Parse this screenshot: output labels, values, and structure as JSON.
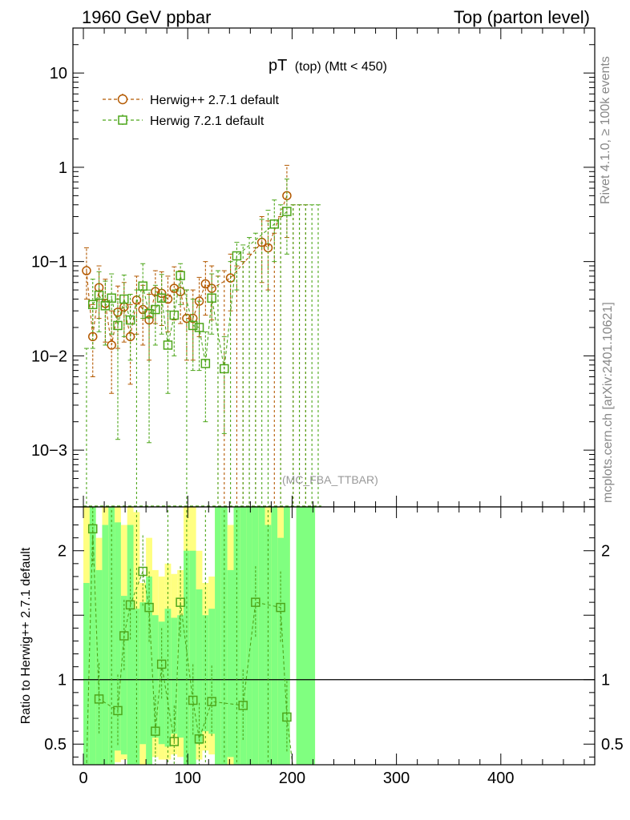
{
  "header": {
    "left": "1960 GeV ppbar",
    "right": "Top (parton level)"
  },
  "side": {
    "rivet": "Rivet 4.1.0, ≥ 100k events",
    "mcplots": "mcplots.cern.ch [arXiv:2401.10621]"
  },
  "colors": {
    "herwigpp": "#b35900",
    "herwig7": "#4da61a",
    "band_yellow": "#ffff80",
    "band_green": "#80ff80"
  },
  "chart_data": [
    {
      "type": "line",
      "panel": "main",
      "title": "pT",
      "title_sub": "(top) (Mtt < 450)",
      "watermark": "(MC_FBA_TTBAR)",
      "yscale": "log",
      "ylim": [
        0.00025,
        30
      ],
      "xlim": [
        -10,
        490
      ],
      "y_ticks": [
        {
          "value": 10,
          "label": "10"
        },
        {
          "value": 1,
          "label": "1"
        },
        {
          "value": 0.1,
          "label": "10−1"
        },
        {
          "value": 0.01,
          "label": "10−2"
        },
        {
          "value": 0.001,
          "label": "10−3"
        }
      ],
      "legend": [
        "Herwig++ 2.7.1 default",
        "Herwig 7.2.1 default"
      ],
      "legend_position": "top-left",
      "series": [
        {
          "name": "Herwig++ 2.7.1 default",
          "color": "#b35900",
          "marker": "circle",
          "points": [
            {
              "x": 3,
              "y": 0.08,
              "lo": 0.04,
              "hi": 0.14
            },
            {
              "x": 9,
              "y": 0.016,
              "lo": 0.006,
              "hi": 0.035
            },
            {
              "x": 15,
              "y": 0.053,
              "lo": 0.025,
              "hi": 0.09
            },
            {
              "x": 21,
              "y": 0.036,
              "lo": 0.014,
              "hi": 0.065
            },
            {
              "x": 27,
              "y": 0.013,
              "lo": 0.004,
              "hi": 0.03
            },
            {
              "x": 33,
              "y": 0.029,
              "lo": 0.012,
              "hi": 0.055
            },
            {
              "x": 39,
              "y": 0.033,
              "lo": 0.014,
              "hi": 0.06
            },
            {
              "x": 45,
              "y": 0.016,
              "lo": 0.005,
              "hi": 0.035
            },
            {
              "x": 51,
              "y": 0.039,
              "lo": 0.017,
              "hi": 0.07
            },
            {
              "x": 57,
              "y": 0.031,
              "lo": 0.013,
              "hi": 0.056
            },
            {
              "x": 63,
              "y": 0.024,
              "lo": 0.009,
              "hi": 0.045
            },
            {
              "x": 69,
              "y": 0.048,
              "lo": 0.022,
              "hi": 0.08
            },
            {
              "x": 75,
              "y": 0.046,
              "lo": 0.021,
              "hi": 0.078
            },
            {
              "x": 81,
              "y": 0.04,
              "lo": 0.018,
              "hi": 0.07
            },
            {
              "x": 87,
              "y": 0.052,
              "lo": 0.024,
              "hi": 0.088
            },
            {
              "x": 93,
              "y": 0.048,
              "lo": 0.022,
              "hi": 0.08
            },
            {
              "x": 99,
              "y": 0.025,
              "lo": 0.009,
              "hi": 0.05
            },
            {
              "x": 105,
              "y": 0.025,
              "lo": 0.009,
              "hi": 0.05
            },
            {
              "x": 111,
              "y": 0.038,
              "lo": 0.016,
              "hi": 0.068
            },
            {
              "x": 117,
              "y": 0.058,
              "lo": 0.027,
              "hi": 0.1
            },
            {
              "x": 123,
              "y": 0.052,
              "lo": 0.024,
              "hi": 0.09
            },
            {
              "x": 141,
              "y": 0.067,
              "lo": 0.03,
              "hi": 0.12
            },
            {
              "x": 171,
              "y": 0.16,
              "lo": 0.06,
              "hi": 0.3
            },
            {
              "x": 177,
              "y": 0.14,
              "lo": 0.05,
              "hi": 0.27
            },
            {
              "x": 195,
              "y": 0.5,
              "lo": 0.18,
              "hi": 1.05
            }
          ],
          "empty_bins_upper": [
            {
              "x": 129,
              "hi": 0.07
            },
            {
              "x": 135,
              "hi": 0.08
            },
            {
              "x": 147,
              "hi": 0.09
            },
            {
              "x": 153,
              "hi": 0.1
            },
            {
              "x": 159,
              "hi": 0.12
            },
            {
              "x": 165,
              "hi": 0.14
            },
            {
              "x": 183,
              "hi": 0.2
            },
            {
              "x": 189,
              "hi": 0.3
            },
            {
              "x": 201,
              "hi": 0.4
            },
            {
              "x": 207,
              "hi": 0.4
            },
            {
              "x": 213,
              "hi": 0.4
            }
          ]
        },
        {
          "name": "Herwig 7.2.1 default",
          "color": "#4da61a",
          "marker": "square",
          "points": [
            {
              "x": 9,
              "y": 0.035,
              "lo": 0.012,
              "hi": 0.065
            },
            {
              "x": 15,
              "y": 0.044,
              "lo": 0.018,
              "hi": 0.078
            },
            {
              "x": 21,
              "y": 0.034,
              "lo": 0.013,
              "hi": 0.062
            },
            {
              "x": 27,
              "y": 0.041,
              "lo": 0.017,
              "hi": 0.074
            },
            {
              "x": 33,
              "y": 0.021,
              "lo": 0.0013,
              "hi": 0.04
            },
            {
              "x": 39,
              "y": 0.04,
              "lo": 0.016,
              "hi": 0.072
            },
            {
              "x": 45,
              "y": 0.024,
              "lo": 0.009,
              "hi": 0.045
            },
            {
              "x": 57,
              "y": 0.055,
              "lo": 0.025,
              "hi": 0.095
            },
            {
              "x": 63,
              "y": 0.028,
              "lo": 0.0012,
              "hi": 0.05
            },
            {
              "x": 69,
              "y": 0.031,
              "lo": 0.013,
              "hi": 0.056
            },
            {
              "x": 75,
              "y": 0.041,
              "lo": 0.017,
              "hi": 0.073
            },
            {
              "x": 81,
              "y": 0.013,
              "lo": 0.004,
              "hi": 0.03
            },
            {
              "x": 87,
              "y": 0.027,
              "lo": 0.01,
              "hi": 0.05
            },
            {
              "x": 93,
              "y": 0.071,
              "lo": 0.035,
              "hi": 0.095
            },
            {
              "x": 105,
              "y": 0.021,
              "lo": 0.007,
              "hi": 0.04
            },
            {
              "x": 111,
              "y": 0.02,
              "lo": 0.007,
              "hi": 0.038
            },
            {
              "x": 117,
              "y": 0.0083,
              "lo": 0.002,
              "hi": 0.018
            },
            {
              "x": 123,
              "y": 0.041,
              "lo": 0.017,
              "hi": 0.074
            },
            {
              "x": 135,
              "y": 0.0073,
              "lo": 0.0015,
              "hi": 0.016
            },
            {
              "x": 147,
              "y": 0.115,
              "lo": 0.05,
              "hi": 0.16
            },
            {
              "x": 183,
              "y": 0.25,
              "lo": 0.1,
              "hi": 0.45
            },
            {
              "x": 195,
              "y": 0.34,
              "lo": 0.12,
              "hi": 0.75
            }
          ],
          "empty_bins_upper": [
            {
              "x": 3,
              "hi": 0.012
            },
            {
              "x": 51,
              "hi": 0.05
            },
            {
              "x": 99,
              "hi": 0.05
            },
            {
              "x": 129,
              "hi": 0.08
            },
            {
              "x": 141,
              "hi": 0.1
            },
            {
              "x": 153,
              "hi": 0.15
            },
            {
              "x": 159,
              "hi": 0.18
            },
            {
              "x": 165,
              "hi": 0.2
            },
            {
              "x": 171,
              "hi": 0.28
            },
            {
              "x": 177,
              "hi": 0.35
            },
            {
              "x": 189,
              "hi": 0.4
            },
            {
              "x": 201,
              "hi": 0.4
            },
            {
              "x": 207,
              "hi": 0.4
            },
            {
              "x": 213,
              "hi": 0.4
            },
            {
              "x": 219,
              "hi": 0.4
            },
            {
              "x": 225,
              "hi": 0.4
            }
          ]
        }
      ]
    },
    {
      "type": "line",
      "panel": "ratio",
      "ylabel": "Ratio to Herwig++ 2.7.1 default",
      "xlabel": "",
      "ylim": [
        0.34,
        2.34
      ],
      "xlim": [
        -10,
        490
      ],
      "y_ticks": [
        {
          "value": 2,
          "label": "2"
        },
        {
          "value": 1,
          "label": "1"
        },
        {
          "value": 0.5,
          "label": "0.5"
        }
      ],
      "x_ticks": [
        {
          "value": 0,
          "label": "0"
        },
        {
          "value": 100,
          "label": "100"
        },
        {
          "value": 200,
          "label": "200"
        },
        {
          "value": 300,
          "label": "300"
        },
        {
          "value": 400,
          "label": "400"
        }
      ],
      "reference_line": 1,
      "band_bins": [
        {
          "x0": 0,
          "x1": 6,
          "ylo": 0.34,
          "yhi": 2.34,
          "glo": 0.34,
          "ghi": 1.75
        },
        {
          "x0": 6,
          "x1": 12,
          "ylo": 0.34,
          "yhi": 2.34,
          "glo": 0.34,
          "ghi": 2.34
        },
        {
          "x0": 12,
          "x1": 18,
          "ylo": 0.34,
          "yhi": 2.1,
          "glo": 0.34,
          "ghi": 1.85
        },
        {
          "x0": 18,
          "x1": 24,
          "ylo": 0.34,
          "yhi": 2.34,
          "glo": 0.34,
          "ghi": 2.2
        },
        {
          "x0": 24,
          "x1": 30,
          "ylo": 0.34,
          "yhi": 2.34,
          "glo": 0.34,
          "ghi": 2.34
        },
        {
          "x0": 30,
          "x1": 36,
          "ylo": 0.36,
          "yhi": 2.34,
          "glo": 0.45,
          "ghi": 2.22
        },
        {
          "x0": 36,
          "x1": 42,
          "ylo": 0.38,
          "yhi": 2.2,
          "glo": 0.42,
          "ghi": 1.65
        },
        {
          "x0": 42,
          "x1": 48,
          "ylo": 0.34,
          "yhi": 2.34,
          "glo": 0.34,
          "ghi": 2.2
        },
        {
          "x0": 48,
          "x1": 54,
          "ylo": 0.34,
          "yhi": 2.3,
          "glo": 0.34,
          "ghi": 1.55
        },
        {
          "x0": 54,
          "x1": 60,
          "ylo": 0.34,
          "yhi": 1.75,
          "glo": 0.5,
          "ghi": 1.6
        },
        {
          "x0": 60,
          "x1": 66,
          "ylo": 0.34,
          "yhi": 2.1,
          "glo": 0.34,
          "ghi": 1.8
        },
        {
          "x0": 66,
          "x1": 72,
          "ylo": 0.4,
          "yhi": 1.85,
          "glo": 0.55,
          "ghi": 1.5
        },
        {
          "x0": 72,
          "x1": 78,
          "ylo": 0.38,
          "yhi": 1.8,
          "glo": 0.5,
          "ghi": 1.45
        },
        {
          "x0": 78,
          "x1": 84,
          "ylo": 0.38,
          "yhi": 1.9,
          "glo": 0.48,
          "ghi": 1.55
        },
        {
          "x0": 84,
          "x1": 90,
          "ylo": 0.42,
          "yhi": 1.82,
          "glo": 0.58,
          "ghi": 1.48
        },
        {
          "x0": 90,
          "x1": 96,
          "ylo": 0.4,
          "yhi": 1.85,
          "glo": 0.55,
          "ghi": 1.5
        },
        {
          "x0": 96,
          "x1": 102,
          "ylo": 0.34,
          "yhi": 2.34,
          "glo": 0.34,
          "ghi": 2.0
        },
        {
          "x0": 102,
          "x1": 108,
          "ylo": 0.34,
          "yhi": 2.34,
          "glo": 0.34,
          "ghi": 2.0
        },
        {
          "x0": 108,
          "x1": 114,
          "ylo": 0.38,
          "yhi": 2.0,
          "glo": 0.5,
          "ghi": 1.7
        },
        {
          "x0": 114,
          "x1": 120,
          "ylo": 0.45,
          "yhi": 1.75,
          "glo": 0.6,
          "ghi": 1.5
        },
        {
          "x0": 120,
          "x1": 126,
          "ylo": 0.42,
          "yhi": 1.8,
          "glo": 0.58,
          "ghi": 1.55
        },
        {
          "x0": 126,
          "x1": 132,
          "ylo": 0.34,
          "yhi": 2.34,
          "glo": 0.34,
          "ghi": 2.34
        },
        {
          "x0": 132,
          "x1": 138,
          "ylo": 0.34,
          "yhi": 2.34,
          "glo": 0.34,
          "ghi": 2.34
        },
        {
          "x0": 138,
          "x1": 144,
          "ylo": 0.34,
          "yhi": 2.2,
          "glo": 0.4,
          "ghi": 1.85
        },
        {
          "x0": 144,
          "x1": 150,
          "ylo": 0.34,
          "yhi": 2.34,
          "glo": 0.34,
          "ghi": 2.34
        },
        {
          "x0": 150,
          "x1": 156,
          "ylo": 0.34,
          "yhi": 2.34,
          "glo": 0.34,
          "ghi": 2.34
        },
        {
          "x0": 156,
          "x1": 162,
          "ylo": 0.34,
          "yhi": 2.34,
          "glo": 0.34,
          "ghi": 2.34
        },
        {
          "x0": 162,
          "x1": 168,
          "ylo": 0.34,
          "yhi": 2.34,
          "glo": 0.34,
          "ghi": 2.34
        },
        {
          "x0": 168,
          "x1": 174,
          "ylo": 0.34,
          "yhi": 2.34,
          "glo": 0.34,
          "ghi": 2.34
        },
        {
          "x0": 174,
          "x1": 180,
          "ylo": 0.34,
          "yhi": 2.34,
          "glo": 0.34,
          "ghi": 2.2
        },
        {
          "x0": 180,
          "x1": 186,
          "ylo": 0.34,
          "yhi": 2.34,
          "glo": 0.34,
          "ghi": 2.34
        },
        {
          "x0": 186,
          "x1": 192,
          "ylo": 0.34,
          "yhi": 2.34,
          "glo": 0.34,
          "ghi": 2.1
        },
        {
          "x0": 192,
          "x1": 198,
          "ylo": 0.34,
          "yhi": 2.34,
          "glo": 0.34,
          "ghi": 2.34
        },
        {
          "x0": 204,
          "x1": 222,
          "ylo": 0.34,
          "yhi": 2.34,
          "glo": 0.34,
          "ghi": 2.34
        }
      ],
      "series": [
        {
          "name": "Herwig 7.2.1 default",
          "color": "#4da61a",
          "marker": "square",
          "points": [
            {
              "x": 9,
              "y": 2.17
            },
            {
              "x": 15,
              "y": 0.85
            },
            {
              "x": 33,
              "y": 0.76
            },
            {
              "x": 39,
              "y": 1.34
            },
            {
              "x": 45,
              "y": 1.58
            },
            {
              "x": 57,
              "y": 1.84
            },
            {
              "x": 63,
              "y": 1.56
            },
            {
              "x": 69,
              "y": 0.6
            },
            {
              "x": 75,
              "y": 1.12
            },
            {
              "x": 87,
              "y": 0.52
            },
            {
              "x": 93,
              "y": 1.6
            },
            {
              "x": 105,
              "y": 0.84
            },
            {
              "x": 111,
              "y": 0.54
            },
            {
              "x": 123,
              "y": 0.83
            },
            {
              "x": 153,
              "y": 0.8
            },
            {
              "x": 165,
              "y": 1.6
            },
            {
              "x": 189,
              "y": 1.56
            },
            {
              "x": 195,
              "y": 0.71
            }
          ],
          "down_arrows": [
            27,
            51,
            81,
            99,
            117,
            135,
            147,
            177
          ]
        }
      ]
    }
  ]
}
